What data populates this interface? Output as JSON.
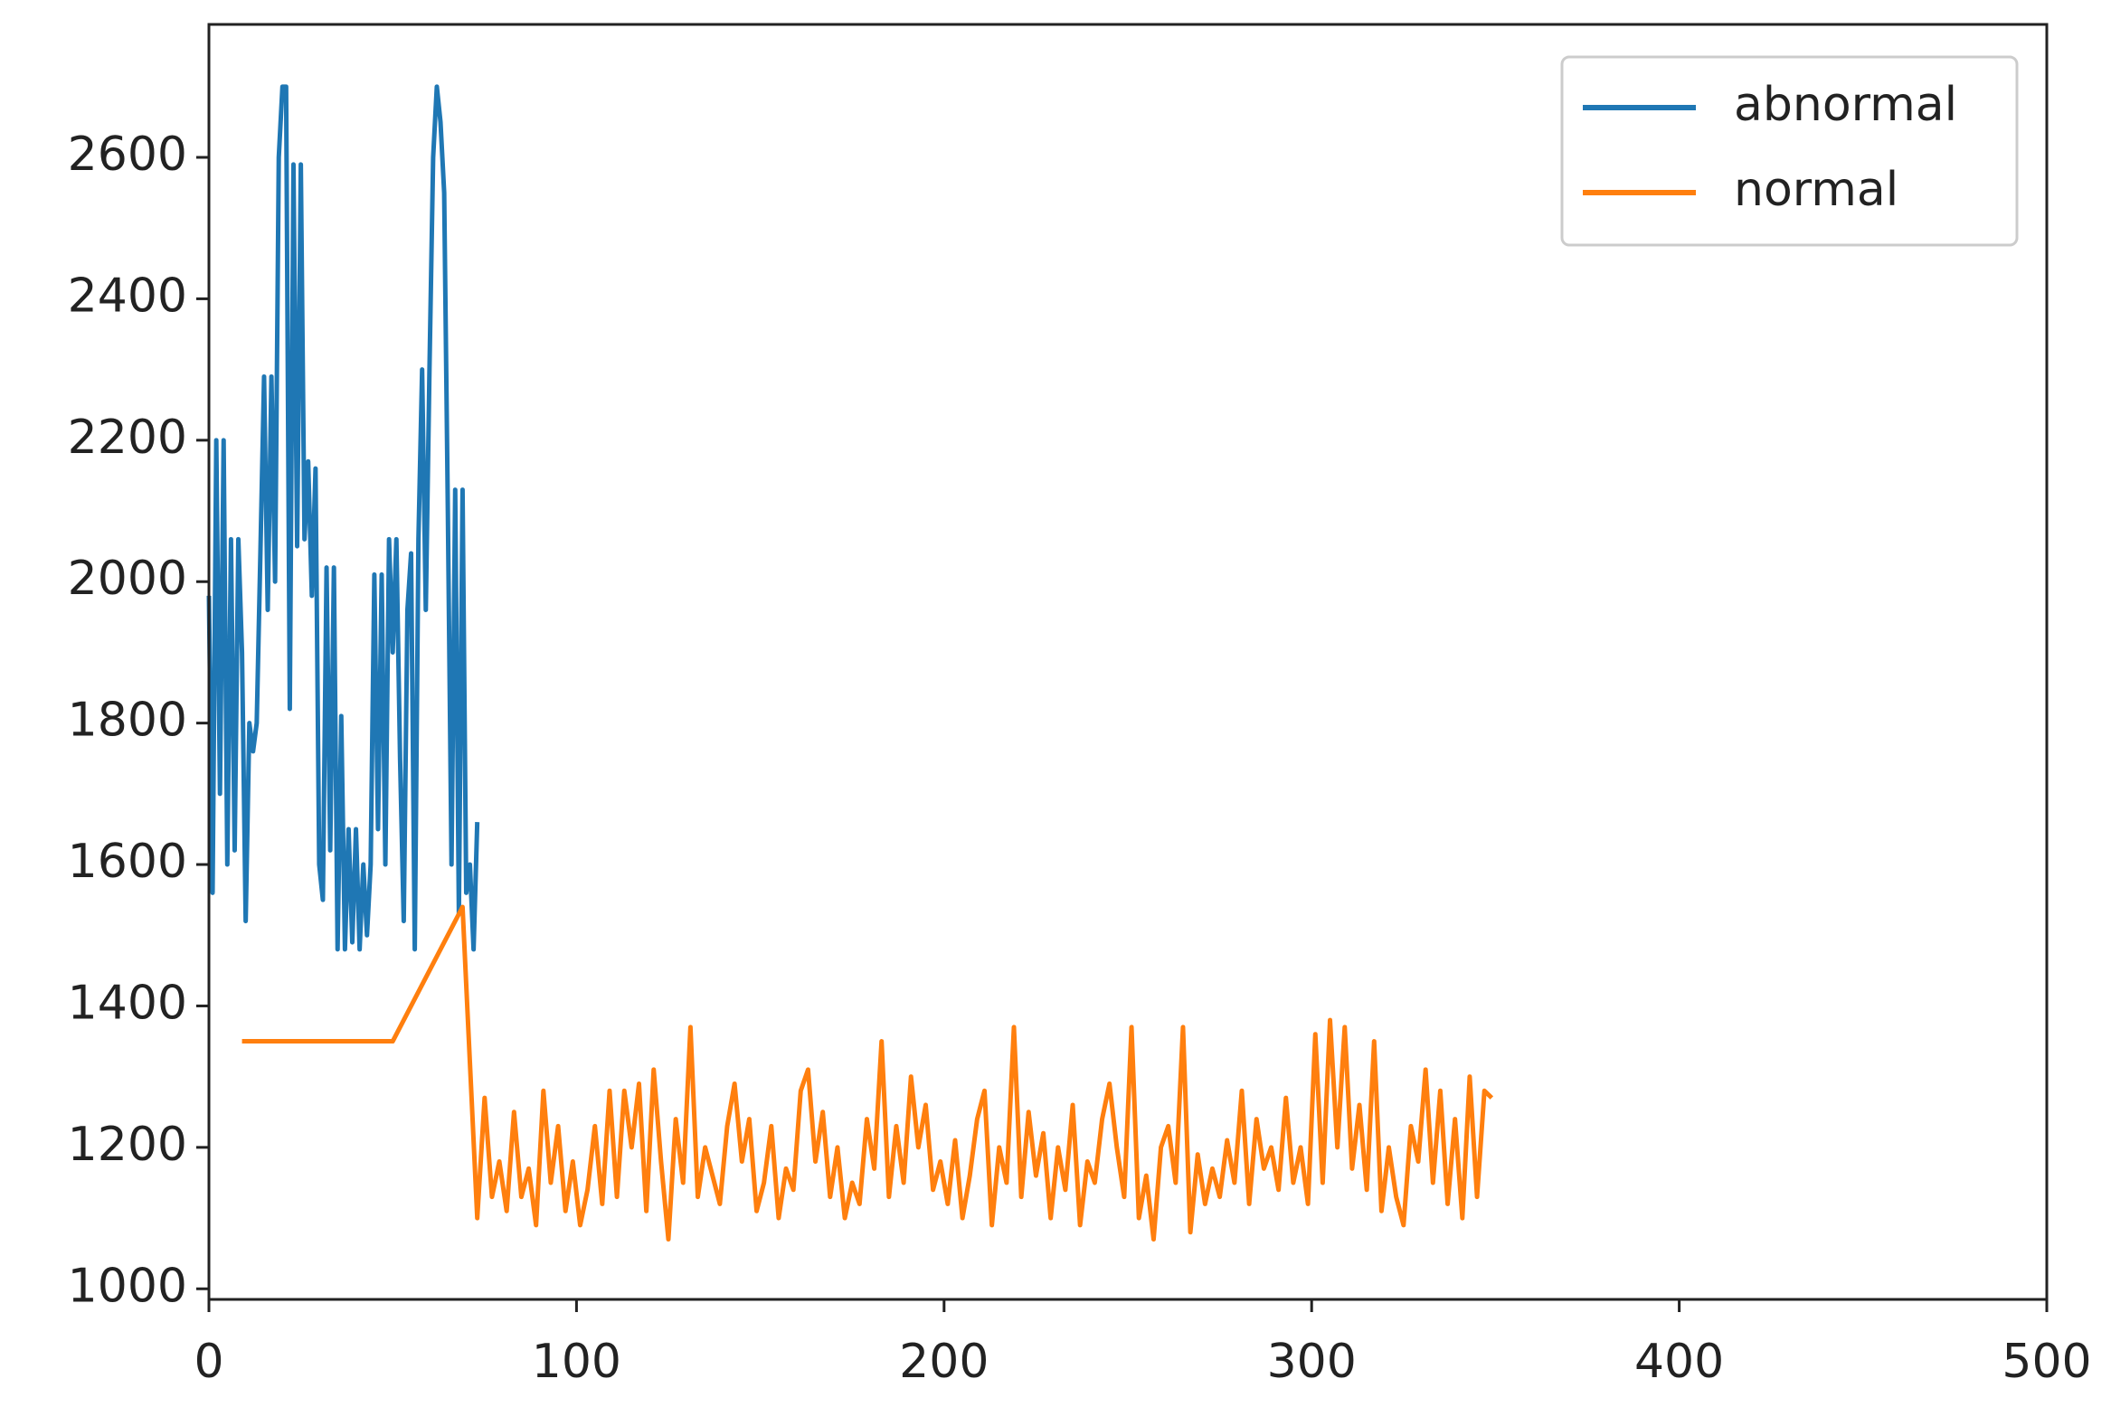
{
  "chart_data": {
    "type": "line",
    "xlim": [
      0,
      500
    ],
    "ylim": [
      985,
      2788
    ],
    "xticks": [
      0,
      100,
      200,
      300,
      400,
      500
    ],
    "yticks": [
      1000,
      1200,
      1400,
      1600,
      1800,
      2000,
      2200,
      2400,
      2600
    ],
    "grid": false,
    "legend": "upper right",
    "series": [
      {
        "name": "abnormal",
        "color": "#1f77b4",
        "x": [
          0,
          1,
          2,
          3,
          4,
          5,
          6,
          7,
          8,
          9,
          10,
          11,
          12,
          13,
          14,
          15,
          16,
          17,
          18,
          19,
          20,
          21,
          22,
          23,
          24,
          25,
          26,
          27,
          28,
          29,
          30,
          31,
          32,
          33,
          34,
          35,
          36,
          37,
          38,
          39,
          40,
          41,
          42,
          43,
          44,
          45,
          46,
          47,
          48,
          49,
          50,
          51,
          52,
          53,
          54,
          55,
          56,
          57,
          58,
          59,
          60,
          61,
          62,
          63,
          64,
          65,
          66,
          67,
          68,
          69,
          70,
          71,
          72,
          73
        ],
        "values": [
          1980,
          1560,
          2200,
          1700,
          2200,
          1600,
          2060,
          1620,
          2060,
          1900,
          1520,
          1800,
          1760,
          1800,
          2040,
          2290,
          1960,
          2290,
          2000,
          2600,
          2700,
          2700,
          1820,
          2590,
          2050,
          2590,
          2060,
          2170,
          1980,
          2160,
          1600,
          1550,
          2020,
          1620,
          2020,
          1480,
          1810,
          1480,
          1650,
          1490,
          1650,
          1480,
          1600,
          1500,
          1600,
          2010,
          1650,
          2010,
          1600,
          2060,
          1900,
          2060,
          1750,
          1520,
          1960,
          2040,
          1480,
          2060,
          2300,
          1960,
          2300,
          2600,
          2700,
          2650,
          2550,
          2100,
          1600,
          2130,
          1530,
          2130,
          1560,
          1600,
          1480,
          1660
        ]
      },
      {
        "name": "normal",
        "color": "#ff7f0e",
        "x": [
          9,
          50,
          69,
          73,
          75,
          77,
          79,
          81,
          83,
          85,
          87,
          89,
          91,
          93,
          95,
          97,
          99,
          101,
          103,
          105,
          107,
          109,
          111,
          113,
          115,
          117,
          119,
          121,
          123,
          125,
          127,
          129,
          131,
          133,
          135,
          137,
          139,
          141,
          143,
          145,
          147,
          149,
          151,
          153,
          155,
          157,
          159,
          161,
          163,
          165,
          167,
          169,
          171,
          173,
          175,
          177,
          179,
          181,
          183,
          185,
          187,
          189,
          191,
          193,
          195,
          197,
          199,
          201,
          203,
          205,
          207,
          209,
          211,
          213,
          215,
          217,
          219,
          221,
          223,
          225,
          227,
          229,
          231,
          233,
          235,
          237,
          239,
          241,
          243,
          245,
          247,
          249,
          251,
          253,
          255,
          257,
          259,
          261,
          263,
          265,
          267,
          269,
          271,
          273,
          275,
          277,
          279,
          281,
          283,
          285,
          287,
          289,
          291,
          293,
          295,
          297,
          299,
          301,
          303,
          305,
          307,
          309,
          311,
          313,
          315,
          317,
          319,
          321,
          323,
          325,
          327,
          329,
          331,
          333,
          335,
          337,
          339,
          341,
          343,
          345,
          347,
          349
        ],
        "values": [
          1350,
          1350,
          1540,
          1100,
          1270,
          1130,
          1180,
          1110,
          1250,
          1130,
          1170,
          1090,
          1280,
          1150,
          1230,
          1110,
          1180,
          1090,
          1140,
          1230,
          1120,
          1280,
          1130,
          1280,
          1200,
          1290,
          1110,
          1310,
          1180,
          1070,
          1240,
          1150,
          1370,
          1130,
          1200,
          1160,
          1120,
          1230,
          1290,
          1180,
          1240,
          1110,
          1150,
          1230,
          1100,
          1170,
          1140,
          1280,
          1310,
          1180,
          1250,
          1130,
          1200,
          1100,
          1150,
          1120,
          1240,
          1170,
          1350,
          1130,
          1230,
          1150,
          1300,
          1200,
          1260,
          1140,
          1180,
          1120,
          1210,
          1100,
          1160,
          1240,
          1280,
          1090,
          1200,
          1150,
          1370,
          1130,
          1250,
          1160,
          1220,
          1100,
          1200,
          1140,
          1260,
          1090,
          1180,
          1150,
          1240,
          1290,
          1200,
          1130,
          1370,
          1100,
          1160,
          1070,
          1200,
          1230,
          1150,
          1370,
          1080,
          1190,
          1120,
          1170,
          1130,
          1210,
          1150,
          1280,
          1120,
          1240,
          1170,
          1200,
          1140,
          1270,
          1150,
          1200,
          1120,
          1360,
          1150,
          1380,
          1200,
          1370,
          1170,
          1260,
          1140,
          1350,
          1110,
          1200,
          1130,
          1090,
          1230,
          1180,
          1310,
          1150,
          1280,
          1120,
          1240,
          1100,
          1300,
          1130,
          1280,
          1270
        ]
      }
    ]
  }
}
